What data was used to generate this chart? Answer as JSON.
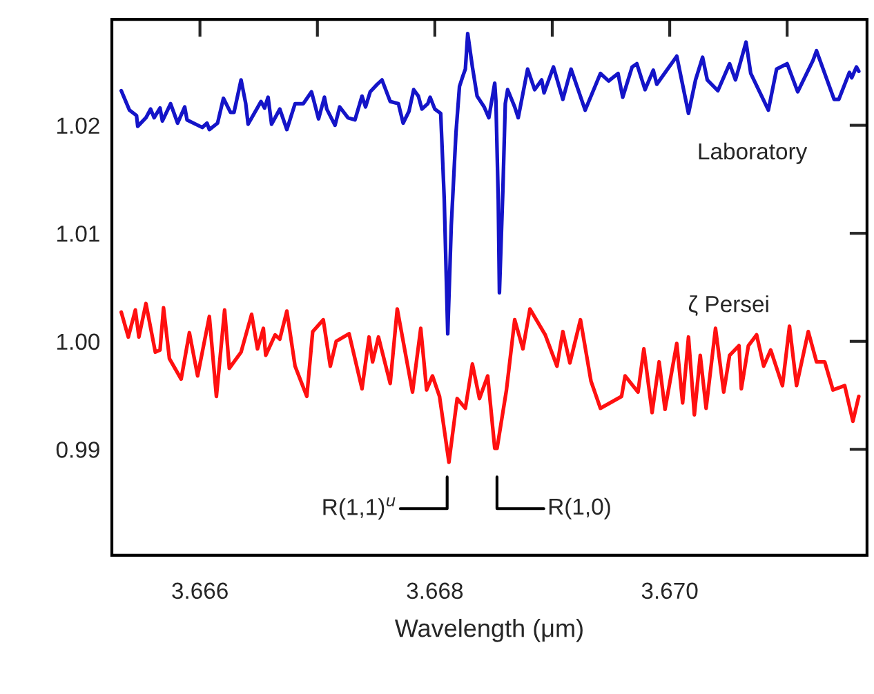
{
  "chart_data": {
    "type": "line",
    "xlabel": "Wavelength (μm)",
    "xlim": [
      3.66525,
      3.67168
    ],
    "ylim": [
      0.9802,
      1.0298
    ],
    "xticks": [
      {
        "value": 3.666,
        "label": "3.666"
      },
      {
        "value": 3.667,
        "label": null
      },
      {
        "value": 3.668,
        "label": "3.668"
      },
      {
        "value": 3.669,
        "label": null
      },
      {
        "value": 3.67,
        "label": "3.670"
      },
      {
        "value": 3.671,
        "label": null
      }
    ],
    "yticks": [
      {
        "value": 0.99,
        "label": "0.99"
      },
      {
        "value": 1.0,
        "label": "1.00"
      },
      {
        "value": 1.01,
        "label": "1.01"
      },
      {
        "value": 1.02,
        "label": "1.02"
      }
    ],
    "series": [
      {
        "name": "Laboratory",
        "color": "#1414c8",
        "x": [
          3.66533,
          3.6654,
          3.66546,
          3.66547,
          3.66554,
          3.66558,
          3.66561,
          3.66566,
          3.66568,
          3.66575,
          3.66581,
          3.66587,
          3.66589,
          3.66602,
          3.66606,
          3.66608,
          3.66615,
          3.6662,
          3.66626,
          3.66629,
          3.66633,
          3.66635,
          3.66639,
          3.66641,
          3.66652,
          3.66655,
          3.66658,
          3.66661,
          3.66668,
          3.66674,
          3.66681,
          3.66688,
          3.66695,
          3.66701,
          3.66706,
          3.66708,
          3.66715,
          3.66719,
          3.66726,
          3.66732,
          3.66738,
          3.66741,
          3.66745,
          3.66751,
          3.66755,
          3.66762,
          3.66769,
          3.66773,
          3.66778,
          3.66782,
          3.66786,
          3.66789,
          3.66794,
          3.66796,
          3.668,
          3.66805,
          3.66808,
          3.66811,
          3.66814,
          3.66818,
          3.66821,
          3.66824,
          3.66826,
          3.66828,
          3.66832,
          3.66836,
          3.66842,
          3.66846,
          3.66851,
          3.66852,
          3.66854,
          3.66855,
          3.66858,
          3.6686,
          3.66862,
          3.66868,
          3.66871,
          3.66879,
          3.66885,
          3.66891,
          3.66893,
          3.66901,
          3.66909,
          3.66916,
          3.66928,
          3.66941,
          3.66948,
          3.66956,
          3.6696,
          3.66968,
          3.66972,
          3.66979,
          3.66986,
          3.66989,
          3.67006,
          3.67016,
          3.67022,
          3.67028,
          3.67032,
          3.67041,
          3.67051,
          3.67056,
          3.67065,
          3.67069,
          3.67084,
          3.67091,
          3.671,
          3.67109,
          3.67122,
          3.67125,
          3.6714,
          3.67144,
          3.67153,
          3.67155,
          3.67159,
          3.67161
        ],
        "values": [
          1.0232,
          1.0214,
          1.0209,
          1.0199,
          1.0207,
          1.0215,
          1.0207,
          1.0216,
          1.0204,
          1.022,
          1.0202,
          1.0217,
          1.0205,
          1.0198,
          1.0202,
          1.0196,
          1.0202,
          1.0225,
          1.0212,
          1.0212,
          1.0232,
          1.0242,
          1.022,
          1.0201,
          1.0222,
          1.0216,
          1.0226,
          1.0201,
          1.0215,
          1.0196,
          1.022,
          1.022,
          1.0231,
          1.0206,
          1.0226,
          1.0215,
          1.02,
          1.0217,
          1.0207,
          1.0205,
          1.0227,
          1.0217,
          1.0231,
          1.0238,
          1.0242,
          1.0222,
          1.022,
          1.0202,
          1.0213,
          1.0233,
          1.0227,
          1.0215,
          1.022,
          1.0226,
          1.0215,
          1.0211,
          1.0132,
          1.0007,
          1.0107,
          1.0193,
          1.0236,
          1.0246,
          1.0252,
          1.0285,
          1.0254,
          1.0227,
          1.0217,
          1.0207,
          1.0239,
          1.0223,
          1.0131,
          1.0045,
          1.0142,
          1.022,
          1.0233,
          1.0217,
          1.0207,
          1.0252,
          1.0233,
          1.0242,
          1.023,
          1.0254,
          1.0224,
          1.0252,
          1.0214,
          1.0248,
          1.0241,
          1.0248,
          1.0226,
          1.0254,
          1.0257,
          1.0233,
          1.0251,
          1.0238,
          1.0264,
          1.0211,
          1.0242,
          1.0263,
          1.0242,
          1.0232,
          1.0257,
          1.0242,
          1.0277,
          1.0248,
          1.0214,
          1.0252,
          1.0257,
          1.0231,
          1.026,
          1.0269,
          1.0224,
          1.0224,
          1.0249,
          1.0244,
          1.0254,
          1.025
        ]
      },
      {
        "name": "ζ Persei",
        "color": "#ff1010",
        "x": [
          3.66533,
          3.66539,
          3.66545,
          3.66548,
          3.66554,
          3.66562,
          3.66566,
          3.66569,
          3.66574,
          3.66584,
          3.66591,
          3.66598,
          3.66608,
          3.66614,
          3.66621,
          3.66625,
          3.66635,
          3.66644,
          3.66649,
          3.66654,
          3.66656,
          3.66664,
          3.66668,
          3.66674,
          3.66681,
          3.66691,
          3.66696,
          3.66705,
          3.66711,
          3.66716,
          3.66727,
          3.66738,
          3.66744,
          3.66747,
          3.66752,
          3.66762,
          3.66768,
          3.66781,
          3.66788,
          3.66793,
          3.66798,
          3.66804,
          3.66812,
          3.66819,
          3.66826,
          3.66832,
          3.66838,
          3.66845,
          3.66851,
          3.66853,
          3.66861,
          3.66868,
          3.66875,
          3.66881,
          3.66894,
          3.66904,
          3.66909,
          3.66915,
          3.66924,
          3.66933,
          3.66941,
          3.66959,
          3.66962,
          3.66973,
          3.66978,
          3.66985,
          3.66991,
          3.66996,
          3.67006,
          3.67011,
          3.67016,
          3.67021,
          3.67026,
          3.67031,
          3.67039,
          3.67046,
          3.67051,
          3.67059,
          3.67061,
          3.67067,
          3.67074,
          3.6708,
          3.67086,
          3.67096,
          3.67102,
          3.67108,
          3.67118,
          3.67125,
          3.67132,
          3.67139,
          3.67149,
          3.67156,
          3.67161
        ],
        "values": [
          1.0027,
          1.0004,
          1.0029,
          1.0004,
          1.0035,
          0.999,
          0.9992,
          1.0031,
          0.9984,
          0.9965,
          1.0008,
          0.9968,
          1.0023,
          0.9949,
          1.0029,
          0.9975,
          0.999,
          1.0025,
          0.9993,
          1.0012,
          0.9987,
          1.0006,
          1.0002,
          1.0028,
          0.9977,
          0.9949,
          1.0009,
          1.002,
          0.9977,
          1.0,
          1.0007,
          0.9956,
          1.0004,
          0.9981,
          1.0004,
          0.9961,
          1.003,
          0.9953,
          1.0012,
          0.9955,
          0.9968,
          0.9949,
          0.9888,
          0.9947,
          0.9938,
          0.9979,
          0.9947,
          0.9968,
          0.9901,
          0.9901,
          0.9955,
          1.002,
          0.9993,
          1.003,
          1.0006,
          0.9977,
          1.0009,
          0.998,
          1.002,
          0.9963,
          0.9938,
          0.9949,
          0.9968,
          0.9953,
          0.9993,
          0.9934,
          0.9981,
          0.9937,
          0.9998,
          0.9943,
          1.0004,
          0.9932,
          0.9987,
          0.9938,
          1.0012,
          0.9953,
          0.9987,
          0.9996,
          0.9956,
          0.9996,
          1.0006,
          0.9977,
          0.9992,
          0.9959,
          1.0014,
          0.9959,
          1.0009,
          0.9981,
          0.9981,
          0.9955,
          0.9959,
          0.9926,
          0.9949
        ]
      }
    ],
    "annotations": [
      "R(1,1)$^{u}$",
      "R(1,0)"
    ]
  }
}
